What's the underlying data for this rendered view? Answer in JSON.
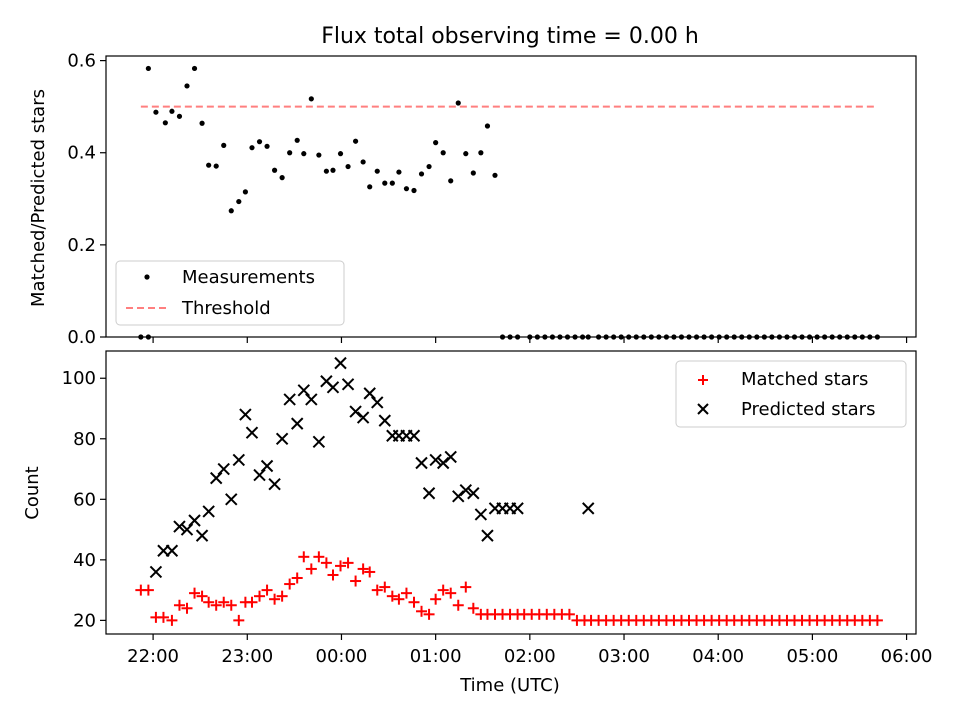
{
  "chart_data": [
    {
      "type": "scatter",
      "title": "Flux total observing time = 0.00 h",
      "xlabel": "",
      "ylabel": "Matched/Predicted stars",
      "xlim": [
        -2.5,
        6.1
      ],
      "ylim": [
        0.0,
        0.61
      ],
      "x_axis": "time since 00:00 UTC in hours (tick labels printed as HH:MM)",
      "yticks": [
        0.0,
        0.2,
        0.4,
        0.6
      ],
      "ytick_labels": [
        "0.0",
        "0.2",
        "0.4",
        "0.6"
      ],
      "legend_position": "lower-left",
      "series": [
        {
          "name": "Measurements",
          "kind": "scatter",
          "marker": "dot",
          "color": "#000000",
          "x": [
            -2.05,
            -1.97,
            -1.87,
            -1.8,
            -1.72,
            -1.64,
            -1.56,
            -1.48,
            -1.41,
            -1.33,
            -1.25,
            -1.17,
            -1.09,
            -1.02,
            -0.95,
            -0.87,
            -0.79,
            -0.71,
            -0.63,
            -0.55,
            -0.47,
            -0.4,
            -0.32,
            -0.24,
            -0.16,
            -0.09,
            -0.01,
            0.07,
            0.15,
            0.23,
            0.3,
            0.38,
            0.46,
            0.54,
            0.61,
            0.69,
            0.77,
            0.85,
            0.93,
            1.0,
            1.08,
            1.16,
            1.24,
            1.32,
            1.4,
            1.48,
            1.55,
            1.63,
            1.71,
            1.79,
            1.87,
            2.62,
            -2.13,
            -2.05,
            2.0,
            2.08,
            2.16,
            2.24,
            2.32,
            2.4,
            2.48,
            2.56,
            2.73,
            2.81,
            2.89,
            2.97,
            3.05,
            3.13,
            3.21,
            3.29,
            3.37,
            3.45,
            3.53,
            3.61,
            3.69,
            3.77,
            3.85,
            3.93,
            4.01,
            4.09,
            4.17,
            4.25,
            4.33,
            4.41,
            4.49,
            4.57,
            4.65,
            4.73,
            4.81,
            4.89,
            4.97,
            5.05,
            5.13,
            5.21,
            5.29,
            5.37,
            5.45,
            5.53,
            5.61,
            5.69
          ],
          "y": [
            0.583,
            0.488,
            0.465,
            0.49,
            0.479,
            0.545,
            0.583,
            0.464,
            0.373,
            0.371,
            0.416,
            0.274,
            0.294,
            0.315,
            0.411,
            0.424,
            0.414,
            0.362,
            0.346,
            0.4,
            0.427,
            0.398,
            0.517,
            0.395,
            0.36,
            0.362,
            0.398,
            0.37,
            0.425,
            0.38,
            0.326,
            0.36,
            0.334,
            0.334,
            0.358,
            0.322,
            0.318,
            0.354,
            0.37,
            0.422,
            0.4,
            0.339,
            0.508,
            0.398,
            0.356,
            0.4,
            0.458,
            0.351,
            0.0,
            0.0,
            0.0,
            0.0,
            0.0,
            0.0,
            0.0,
            0.0,
            0.0,
            0.0,
            0.0,
            0.0,
            0.0,
            0.0,
            0.0,
            0.0,
            0.0,
            0.0,
            0.0,
            0.0,
            0.0,
            0.0,
            0.0,
            0.0,
            0.0,
            0.0,
            0.0,
            0.0,
            0.0,
            0.0,
            0.0,
            0.0,
            0.0,
            0.0,
            0.0,
            0.0,
            0.0,
            0.0,
            0.0,
            0.0,
            0.0,
            0.0,
            0.0,
            0.0,
            0.0,
            0.0,
            0.0,
            0.0,
            0.0,
            0.0,
            0.0,
            0.0
          ]
        },
        {
          "name": "Threshold",
          "kind": "dashed-line",
          "color": "#ff7f7f",
          "x": [
            -2.13,
            5.69
          ],
          "y": [
            0.5,
            0.5
          ]
        }
      ]
    },
    {
      "type": "scatter",
      "title": "",
      "xlabel": "Time (UTC)",
      "ylabel": "Count",
      "xlim": [
        -2.5,
        6.1
      ],
      "ylim": [
        15.5,
        109
      ],
      "xticks": [
        -2,
        -1,
        0,
        1,
        2,
        3,
        4,
        5,
        6
      ],
      "xtick_labels": [
        "22:00",
        "23:00",
        "00:00",
        "01:00",
        "02:00",
        "03:00",
        "04:00",
        "05:00",
        "06:00"
      ],
      "yticks": [
        20,
        40,
        60,
        80,
        100
      ],
      "ytick_labels": [
        "20",
        "40",
        "60",
        "80",
        "100"
      ],
      "legend_position": "top-right",
      "series": [
        {
          "name": "Matched stars",
          "kind": "scatter",
          "marker": "plus",
          "color": "#ff0000",
          "x": [
            -2.13,
            -2.05,
            -1.97,
            -1.89,
            -1.8,
            -1.72,
            -1.64,
            -1.56,
            -1.48,
            -1.41,
            -1.33,
            -1.25,
            -1.17,
            -1.09,
            -1.02,
            -0.95,
            -0.87,
            -0.79,
            -0.71,
            -0.63,
            -0.55,
            -0.47,
            -0.4,
            -0.32,
            -0.24,
            -0.16,
            -0.09,
            -0.01,
            0.07,
            0.15,
            0.23,
            0.3,
            0.38,
            0.46,
            0.54,
            0.61,
            0.69,
            0.77,
            0.85,
            0.93,
            1.0,
            1.08,
            1.16,
            1.24,
            1.32,
            1.4,
            1.48,
            1.55,
            1.63,
            1.71,
            1.79,
            1.87,
            1.94,
            2.02,
            2.1,
            2.18,
            2.26,
            2.34,
            2.42,
            2.5,
            2.58,
            2.65,
            2.73,
            2.81,
            2.89,
            2.97,
            3.05,
            3.13,
            3.21,
            3.29,
            3.37,
            3.45,
            3.53,
            3.61,
            3.69,
            3.77,
            3.85,
            3.93,
            4.01,
            4.09,
            4.17,
            4.25,
            4.33,
            4.41,
            4.49,
            4.57,
            4.65,
            4.73,
            4.81,
            4.89,
            4.97,
            5.05,
            5.13,
            5.21,
            5.29,
            5.37,
            5.45,
            5.53,
            5.61,
            5.69
          ],
          "y": [
            30,
            30,
            21,
            21,
            20,
            25,
            24,
            29,
            28,
            26,
            25,
            26,
            25,
            20,
            26,
            26,
            28,
            30,
            27,
            28,
            32,
            34,
            41,
            37,
            41,
            39,
            35,
            38,
            39,
            33,
            37,
            36,
            30,
            31,
            28,
            27,
            29,
            26,
            23,
            22,
            27,
            30,
            29,
            25,
            31,
            24,
            22,
            22,
            22,
            22,
            22,
            22,
            22,
            22,
            22,
            22,
            22,
            22,
            22,
            20,
            20,
            20,
            20,
            20,
            20,
            20,
            20,
            20,
            20,
            20,
            20,
            20,
            20,
            20,
            20,
            20,
            20,
            20,
            20,
            20,
            20,
            20,
            20,
            20,
            20,
            20,
            20,
            20,
            20,
            20,
            20,
            20,
            20,
            20,
            20,
            20,
            20,
            20,
            20,
            20
          ]
        },
        {
          "name": "Predicted stars",
          "kind": "scatter",
          "marker": "x",
          "color": "#000000",
          "x": [
            -1.97,
            -1.89,
            -1.8,
            -1.72,
            -1.64,
            -1.56,
            -1.48,
            -1.41,
            -1.33,
            -1.25,
            -1.17,
            -1.09,
            -1.02,
            -0.95,
            -0.87,
            -0.79,
            -0.71,
            -0.63,
            -0.55,
            -0.47,
            -0.4,
            -0.32,
            -0.24,
            -0.16,
            -0.09,
            -0.01,
            0.07,
            0.15,
            0.23,
            0.3,
            0.38,
            0.46,
            0.54,
            0.61,
            0.69,
            0.77,
            0.85,
            0.93,
            1.0,
            1.08,
            1.16,
            1.24,
            1.32,
            1.4,
            1.48,
            1.55,
            1.63,
            1.71,
            1.79,
            1.87,
            2.62
          ],
          "y": [
            36,
            43,
            43,
            51,
            50,
            53,
            48,
            56,
            67,
            70,
            60,
            73,
            88,
            82,
            68,
            71,
            65,
            80,
            93,
            85,
            96,
            93,
            79,
            99,
            97,
            105,
            98,
            89,
            87,
            95,
            92,
            86,
            81,
            81,
            81,
            81,
            72,
            62,
            73,
            72,
            74,
            61,
            63,
            62,
            55,
            48,
            57,
            57,
            57,
            57,
            57
          ]
        }
      ]
    }
  ]
}
